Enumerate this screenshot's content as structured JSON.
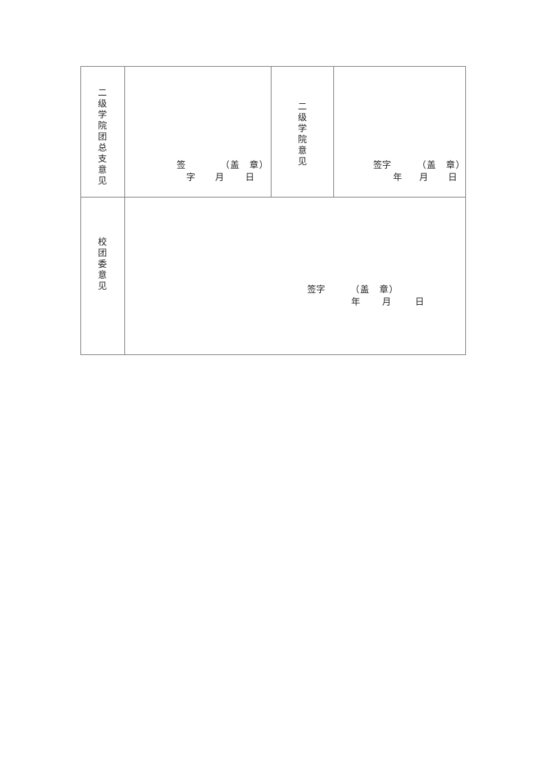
{
  "form": {
    "row1": {
      "league_branch_label": "二级学院团总支意见",
      "league_branch_sign": {
        "sign_a": "签",
        "sign_b": "字",
        "seal": "（盖　章）",
        "month": "月",
        "day": "日"
      },
      "college_label": "二级学院意见",
      "college_sign": {
        "sign": "签字",
        "seal": "（盖　章）",
        "year": "年",
        "month": "月",
        "day": "日"
      }
    },
    "row2": {
      "school_league_label": "校团委意见",
      "school_league_sign": {
        "sign": "签字",
        "seal": "（盖　章）",
        "year": "年",
        "month": "月",
        "day": "日"
      }
    }
  }
}
